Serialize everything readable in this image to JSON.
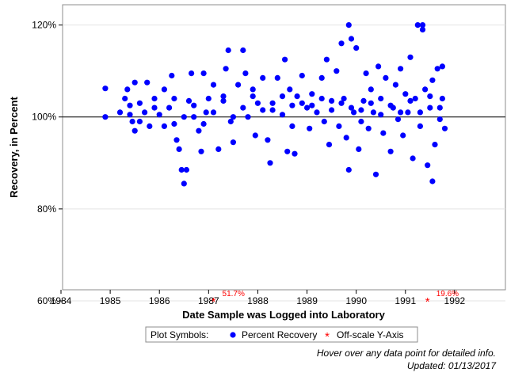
{
  "chart_data": {
    "type": "scatter",
    "xlabel": "Date Sample was Logged into Laboratory",
    "ylabel": "Recovery, in Percent",
    "x_ticks": [
      "1984",
      "1985",
      "1986",
      "1987",
      "1988",
      "1989",
      "1990",
      "1991",
      "1992"
    ],
    "y_ticks": [
      "60%",
      "80%",
      "100%",
      "120%"
    ],
    "xlim": [
      1984,
      1993
    ],
    "ylim": [
      60,
      122
    ],
    "reference_line_y": 100,
    "grid": "horizontal",
    "series": [
      {
        "name": "Percent Recovery",
        "color": "#0000ff",
        "marker": "filled-circle",
        "points": [
          [
            1984.9,
            106.2
          ],
          [
            1984.9,
            100.0
          ],
          [
            1985.2,
            101.0
          ],
          [
            1985.3,
            104.0
          ],
          [
            1985.35,
            106.0
          ],
          [
            1985.4,
            102.5
          ],
          [
            1985.45,
            99.0
          ],
          [
            1985.5,
            97.0
          ],
          [
            1985.5,
            107.5
          ],
          [
            1985.6,
            103.0
          ],
          [
            1985.7,
            101.0
          ],
          [
            1985.75,
            107.5
          ],
          [
            1985.8,
            98.0
          ],
          [
            1985.9,
            104.0
          ],
          [
            1986.0,
            100.5
          ],
          [
            1986.1,
            106.0
          ],
          [
            1986.2,
            102.0
          ],
          [
            1986.25,
            109.0
          ],
          [
            1986.3,
            98.5
          ],
          [
            1986.35,
            95.0
          ],
          [
            1986.4,
            93.0
          ],
          [
            1986.45,
            88.5
          ],
          [
            1986.5,
            85.5
          ],
          [
            1986.55,
            88.5
          ],
          [
            1986.6,
            103.5
          ],
          [
            1986.65,
            109.5
          ],
          [
            1986.7,
            100.0
          ],
          [
            1986.8,
            97.0
          ],
          [
            1986.85,
            92.5
          ],
          [
            1986.9,
            109.5
          ],
          [
            1986.95,
            101.0
          ],
          [
            1987.0,
            104.0
          ],
          [
            1987.1,
            107.0
          ],
          [
            1987.2,
            93.0
          ],
          [
            1987.3,
            104.5
          ],
          [
            1987.35,
            110.5
          ],
          [
            1987.4,
            114.5
          ],
          [
            1987.45,
            99.0
          ],
          [
            1987.5,
            94.5
          ],
          [
            1987.6,
            107.0
          ],
          [
            1987.7,
            114.5
          ],
          [
            1987.75,
            109.5
          ],
          [
            1987.8,
            100.0
          ],
          [
            1987.9,
            106.0
          ],
          [
            1987.95,
            96.0
          ],
          [
            1988.0,
            103.0
          ],
          [
            1988.1,
            108.5
          ],
          [
            1988.2,
            95.0
          ],
          [
            1988.25,
            90.0
          ],
          [
            1988.3,
            101.5
          ],
          [
            1988.4,
            108.5
          ],
          [
            1988.5,
            100.5
          ],
          [
            1988.55,
            112.5
          ],
          [
            1988.6,
            92.5
          ],
          [
            1988.65,
            106.0
          ],
          [
            1988.7,
            98.0
          ],
          [
            1988.75,
            92.0
          ],
          [
            1988.8,
            104.5
          ],
          [
            1988.9,
            109.0
          ],
          [
            1989.0,
            102.0
          ],
          [
            1989.05,
            97.5
          ],
          [
            1989.1,
            105.0
          ],
          [
            1989.2,
            101.0
          ],
          [
            1989.3,
            108.5
          ],
          [
            1989.35,
            99.0
          ],
          [
            1989.4,
            112.5
          ],
          [
            1989.45,
            94.0
          ],
          [
            1989.5,
            103.5
          ],
          [
            1989.6,
            110.0
          ],
          [
            1989.65,
            98.0
          ],
          [
            1989.7,
            116.0
          ],
          [
            1989.75,
            104.0
          ],
          [
            1989.8,
            95.5
          ],
          [
            1989.85,
            120.0
          ],
          [
            1989.85,
            88.5
          ],
          [
            1989.9,
            117.0
          ],
          [
            1989.95,
            101.0
          ],
          [
            1990.0,
            115.0
          ],
          [
            1990.05,
            93.0
          ],
          [
            1990.1,
            99.0
          ],
          [
            1990.15,
            103.5
          ],
          [
            1990.2,
            109.5
          ],
          [
            1990.25,
            97.5
          ],
          [
            1990.3,
            106.0
          ],
          [
            1990.35,
            101.0
          ],
          [
            1990.4,
            87.5
          ],
          [
            1990.45,
            111.0
          ],
          [
            1990.5,
            104.0
          ],
          [
            1990.55,
            96.5
          ],
          [
            1990.6,
            108.5
          ],
          [
            1990.7,
            92.5
          ],
          [
            1990.75,
            102.0
          ],
          [
            1990.8,
            107.0
          ],
          [
            1990.85,
            99.5
          ],
          [
            1990.9,
            110.5
          ],
          [
            1990.95,
            96.0
          ],
          [
            1991.0,
            105.0
          ],
          [
            1991.05,
            101.0
          ],
          [
            1991.1,
            113.0
          ],
          [
            1991.15,
            91.0
          ],
          [
            1991.2,
            104.0
          ],
          [
            1991.25,
            120.0
          ],
          [
            1991.3,
            98.0
          ],
          [
            1991.35,
            119.0
          ],
          [
            1991.35,
            120.0
          ],
          [
            1991.4,
            106.0
          ],
          [
            1991.45,
            89.5
          ],
          [
            1991.5,
            102.0
          ],
          [
            1991.55,
            86.0
          ],
          [
            1991.55,
            108.0
          ],
          [
            1991.6,
            94.0
          ],
          [
            1991.65,
            110.5
          ],
          [
            1991.7,
            99.5
          ],
          [
            1991.75,
            111.0
          ],
          [
            1991.75,
            104.0
          ],
          [
            1991.8,
            97.5
          ],
          [
            1985.4,
            100.5
          ],
          [
            1985.6,
            99.0
          ],
          [
            1985.9,
            102.0
          ],
          [
            1986.1,
            98.0
          ],
          [
            1986.3,
            104.0
          ],
          [
            1986.5,
            100.0
          ],
          [
            1986.7,
            102.5
          ],
          [
            1986.9,
            98.5
          ],
          [
            1987.1,
            101.0
          ],
          [
            1987.3,
            103.5
          ],
          [
            1987.5,
            100.0
          ],
          [
            1987.7,
            102.0
          ],
          [
            1987.9,
            104.5
          ],
          [
            1988.1,
            101.5
          ],
          [
            1988.3,
            103.0
          ],
          [
            1988.5,
            104.5
          ],
          [
            1988.7,
            102.5
          ],
          [
            1988.9,
            103.0
          ],
          [
            1989.1,
            102.5
          ],
          [
            1989.3,
            104.0
          ],
          [
            1989.5,
            101.5
          ],
          [
            1989.7,
            103.0
          ],
          [
            1989.9,
            102.0
          ],
          [
            1990.1,
            101.5
          ],
          [
            1990.3,
            103.0
          ],
          [
            1990.5,
            100.5
          ],
          [
            1990.7,
            102.5
          ],
          [
            1990.9,
            101.0
          ],
          [
            1991.1,
            103.5
          ],
          [
            1991.3,
            101.0
          ],
          [
            1991.5,
            104.5
          ],
          [
            1991.7,
            102.0
          ]
        ]
      },
      {
        "name": "Off-scale Y-Axis",
        "color": "#ff0000",
        "marker": "asterisk",
        "points": [
          [
            1987.1,
            60,
            "51.7%"
          ],
          [
            1991.45,
            60,
            "19.6%"
          ]
        ]
      }
    ]
  },
  "legend": {
    "label": "Plot Symbols:",
    "items": [
      "Percent Recovery",
      "Off-scale Y-Axis"
    ]
  },
  "footer": {
    "hover_note": "Hover over any data point for detailed info.",
    "updated": "Updated: 01/13/2017"
  }
}
